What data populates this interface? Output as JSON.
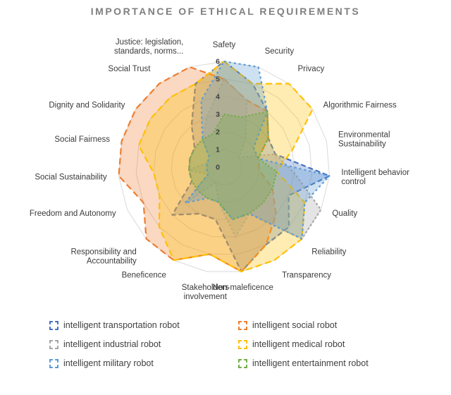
{
  "chart_data": {
    "type": "radar",
    "title": "IMPORTANCE OF ETHICAL REQUIREMENTS",
    "max": 6,
    "tick_labels": [
      0,
      1,
      2,
      3,
      4,
      5,
      6
    ],
    "grid": true,
    "legend_position": "bottom",
    "categories": [
      "Safety",
      "Security",
      "Privacy",
      "Algorithmic Fairness",
      "Environmental\nSustainability",
      "Intelligent behavior\ncontrol",
      "Quality",
      "Reliability",
      "Transparency",
      "Non-maleficence",
      "Stakeholders\ninvolvement",
      "Beneficence",
      "Responsibility and\nAccountability",
      "Freedom and Autonomy",
      "Social Sustainability",
      "Social Fairness",
      "Dignity and Solidarity",
      "Social Trust",
      "Justice: legislation,\nstandards, norms..."
    ],
    "series": [
      {
        "name": "intelligent transportation robot",
        "color": "#4472C4",
        "dash": "7 4",
        "values": [
          6,
          5,
          4,
          3,
          3,
          6,
          4,
          5,
          5,
          6,
          3,
          3,
          4,
          2,
          2,
          2,
          2,
          3,
          5
        ]
      },
      {
        "name": "intelligent social robot",
        "color": "#ED7D31",
        "dash": "9 5",
        "values": [
          5,
          4,
          4,
          3,
          2,
          2,
          3,
          4,
          5,
          6,
          5,
          6,
          6,
          5,
          6,
          6,
          6,
          6,
          6
        ]
      },
      {
        "name": "intelligent industrial robot",
        "color": "#A5A5A5",
        "dash": "3 3",
        "values": [
          5,
          4,
          2,
          1,
          3,
          4,
          6,
          6,
          3,
          4,
          2,
          1,
          3,
          1,
          2,
          1,
          1,
          2,
          3
        ]
      },
      {
        "name": "intelligent medical robot",
        "color": "#FFC000",
        "dash": "9 5",
        "values": [
          6,
          5,
          6,
          6,
          4,
          3,
          5,
          6,
          6,
          6,
          5,
          6,
          5,
          4,
          4,
          5,
          5,
          5,
          5
        ]
      },
      {
        "name": "intelligent military robot",
        "color": "#5B9BD5",
        "dash": "3 4",
        "values": [
          6,
          6,
          4,
          2,
          2,
          6,
          5,
          6,
          3,
          3,
          2,
          2,
          3,
          1,
          1,
          1,
          1,
          2,
          4
        ]
      },
      {
        "name": "intelligent entertainment robot",
        "color": "#70AD47",
        "dash": "2 3",
        "values": [
          3,
          3,
          4,
          3,
          2,
          3,
          3,
          3,
          3,
          3,
          2,
          2,
          2,
          2,
          2,
          2,
          2,
          2,
          2
        ]
      }
    ]
  }
}
